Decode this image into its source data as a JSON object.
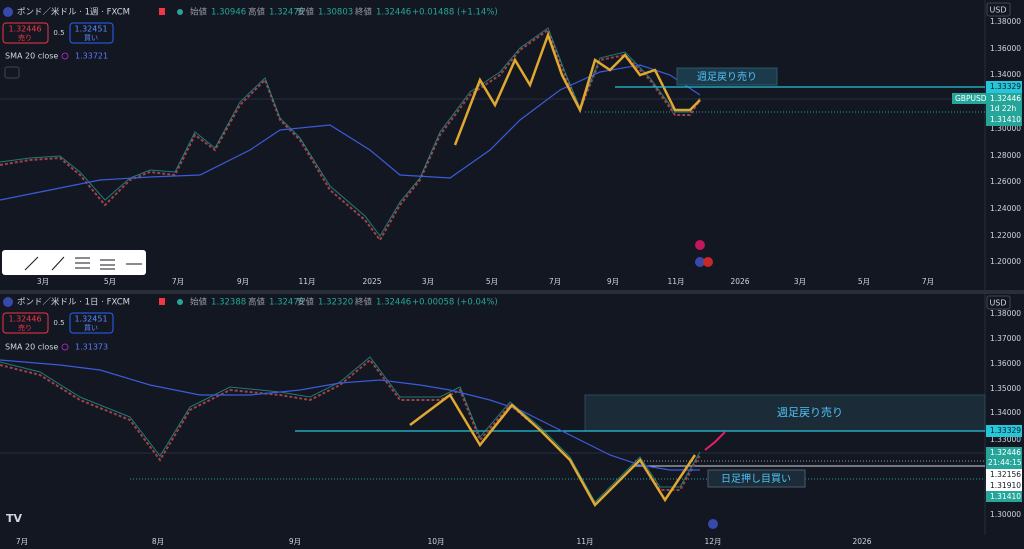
{
  "top_panel": {
    "symbol": "ポンド／米ドル · 1週 · FXCM",
    "ohlc": [
      {
        "label": "始値",
        "value": "1.30946"
      },
      {
        "label": "高値",
        "value": "1.32479"
      },
      {
        "label": "安値",
        "value": "1.30803"
      },
      {
        "label": "終値",
        "value": "1.32446"
      }
    ],
    "change": "+0.01488 (+1.14%)",
    "sell_price": "1.32446",
    "sell_label": "売り",
    "spread": "0.5",
    "buy_price": "1.32451",
    "buy_label": "買い",
    "indicator": "SMA 20 close",
    "indicator_value": "1.33721",
    "currency": "USD",
    "price_ticks": [
      "1.38000",
      "1.36000",
      "1.34000",
      "1.30000",
      "1.28000",
      "1.26000",
      "1.24000",
      "1.22000",
      "1.20000"
    ],
    "price_tags": {
      "resistance": "1.33329",
      "symbol_tag": "GBPUSD",
      "last": "1.32446",
      "countdown": "1d 22h",
      "support": "1.31410"
    },
    "time_ticks": [
      "3月",
      "5月",
      "7月",
      "9月",
      "11月",
      "2025",
      "3月",
      "5月",
      "7月",
      "9月",
      "11月",
      "2026",
      "3月",
      "5月",
      "7月"
    ],
    "annotation": "週足戻り売り"
  },
  "bottom_panel": {
    "symbol": "ポンド／米ドル · 1日 · FXCM",
    "ohlc": [
      {
        "label": "始値",
        "value": "1.32388"
      },
      {
        "label": "高値",
        "value": "1.32479"
      },
      {
        "label": "安値",
        "value": "1.32320"
      },
      {
        "label": "終値",
        "value": "1.32446"
      }
    ],
    "change": "+0.00058 (+0.04%)",
    "sell_price": "1.32446",
    "sell_label": "売り",
    "spread": "0.5",
    "buy_price": "1.32451",
    "buy_label": "買い",
    "indicator": "SMA 20 close",
    "indicator_value": "1.31373",
    "currency": "USD",
    "price_ticks": [
      "1.38000",
      "1.37000",
      "1.36000",
      "1.35000",
      "1.34000",
      "1.33000",
      "1.30000"
    ],
    "price_tags": {
      "resistance": "1.33329",
      "last": "1.32446",
      "countdown": "21:44:15",
      "level_a": "1.32156",
      "level_b": "1.31910",
      "support": "1.31410"
    },
    "time_ticks": [
      "7月",
      "8月",
      "9月",
      "10月",
      "11月",
      "12月",
      "2026"
    ],
    "annotations": [
      "週足戻り売り",
      "日足押し目買い"
    ]
  }
}
